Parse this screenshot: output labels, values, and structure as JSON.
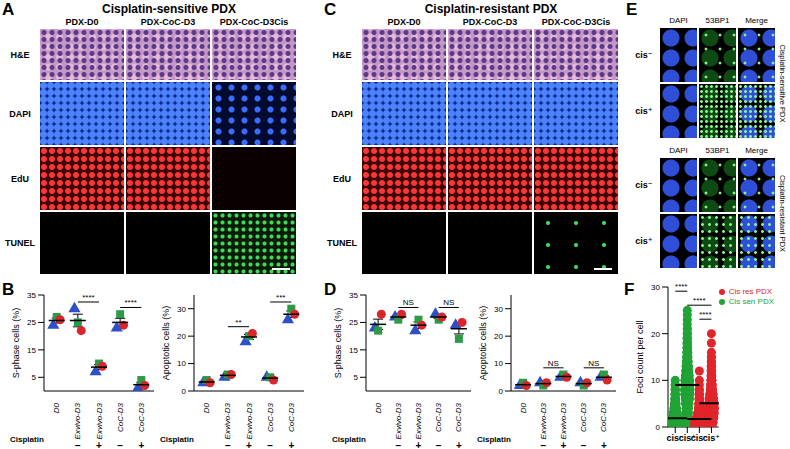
{
  "image_panels": {
    "A": {
      "letter": "A",
      "title": "Cisplatin-sensitive PDX",
      "columns": [
        "PDX-D0",
        "PDX-CoC-D3",
        "PDX-CoC-D3Cis"
      ],
      "rows": [
        "H&E",
        "DAPI",
        "EdU",
        "TUNEL"
      ]
    },
    "C": {
      "letter": "C",
      "title": "Cisplatin-resistant PDX",
      "columns": [
        "PDX-D0",
        "PDX-CoC-D3",
        "PDX-CoC-D3Cis"
      ],
      "rows": [
        "H&E",
        "DAPI",
        "EdU",
        "TUNEL"
      ]
    },
    "E": {
      "letter": "E",
      "columns": [
        "DAPI",
        "53BP1",
        "Merge"
      ],
      "rows": [
        "cis⁻",
        "cis⁺"
      ],
      "groups": [
        "Cisplatin-sensitive PDX",
        "Cisplatin-resistant PDX"
      ]
    }
  },
  "chart_data": [
    {
      "type": "scatter",
      "panel_label": "B",
      "ylabel": "S-phase cells (%)",
      "categories": [
        "D0",
        "Exvivo-D3",
        "Exvivo-D3",
        "CoC-D3",
        "CoC-D3"
      ],
      "cisplatin_label": "Cisplatin",
      "cisplatin": [
        null,
        "−",
        "+",
        "−",
        "+"
      ],
      "ylim": [
        0,
        35
      ],
      "yticks": [
        0,
        5,
        10,
        15,
        20,
        25,
        30,
        35
      ],
      "series": [
        {
          "color": "#2b50c8",
          "marker": "triangle",
          "values": [
            24,
            30,
            7,
            23,
            1
          ]
        },
        {
          "color": "#2e9a48",
          "marker": "square",
          "values": [
            27,
            25,
            10,
            28,
            4
          ]
        },
        {
          "color": "#d9262b",
          "marker": "circle",
          "values": [
            26,
            22,
            9,
            24,
            2
          ]
        }
      ],
      "mean": [
        25.7,
        25.7,
        8.7,
        25,
        2.3
      ],
      "sem": [
        0.9,
        2.3,
        0.9,
        1.5,
        0.9
      ],
      "significance": [
        {
          "from": 1,
          "to": 2,
          "label": "****"
        },
        {
          "from": 3,
          "to": 4,
          "label": "****"
        }
      ]
    },
    {
      "type": "scatter",
      "ylabel": "Apoptotic cells (%)",
      "categories": [
        "D0",
        "Exvivo-D3",
        "Exvivo-D3",
        "CoC-D3",
        "CoC-D3"
      ],
      "cisplatin_label": "Cisplatin",
      "cisplatin": [
        null,
        "−",
        "+",
        "−",
        "+"
      ],
      "ylim": [
        0,
        35
      ],
      "yticks": [
        0,
        10,
        20,
        30
      ],
      "series": [
        {
          "color": "#2b50c8",
          "marker": "triangle",
          "values": [
            3,
            5,
            18,
            5,
            26
          ]
        },
        {
          "color": "#2e9a48",
          "marker": "square",
          "values": [
            4,
            6,
            20,
            5,
            30
          ]
        },
        {
          "color": "#d9262b",
          "marker": "circle",
          "values": [
            3,
            6,
            21,
            4,
            28
          ]
        }
      ],
      "mean": [
        3.3,
        5.7,
        19.7,
        4.7,
        28
      ],
      "sem": [
        0.3,
        0.3,
        0.9,
        0.3,
        1.2
      ],
      "significance": [
        {
          "from": 1,
          "to": 2,
          "label": "**"
        },
        {
          "from": 3,
          "to": 4,
          "label": "***"
        }
      ]
    },
    {
      "type": "scatter",
      "panel_label": "D",
      "ylabel": "S-phase cells (%)",
      "categories": [
        "D0",
        "Exvivo-D3",
        "Exvivo-D3",
        "CoC-D3",
        "CoC-D3"
      ],
      "cisplatin_label": "Cisplatin",
      "cisplatin": [
        null,
        "−",
        "+",
        "−",
        "+"
      ],
      "ylim": [
        0,
        35
      ],
      "yticks": [
        0,
        5,
        10,
        15,
        20,
        25,
        30,
        35
      ],
      "series": [
        {
          "color": "#2b50c8",
          "marker": "triangle",
          "values": [
            23,
            27,
            22,
            28,
            24
          ]
        },
        {
          "color": "#2e9a48",
          "marker": "square",
          "values": [
            22,
            26,
            26,
            26,
            19
          ]
        },
        {
          "color": "#d9262b",
          "marker": "circle",
          "values": [
            28,
            28,
            24,
            27,
            25
          ]
        }
      ],
      "mean": [
        24.3,
        27,
        24,
        27,
        22.7
      ],
      "sem": [
        1.9,
        0.6,
        1.2,
        0.6,
        1.9
      ],
      "significance": [
        {
          "from": 1,
          "to": 2,
          "label": "NS"
        },
        {
          "from": 3,
          "to": 4,
          "label": "NS"
        }
      ]
    },
    {
      "type": "scatter",
      "ylabel": "Apoptotic cells (%)",
      "categories": [
        "D0",
        "Exvivo-D3",
        "Exvivo-D3",
        "CoC-D3",
        "CoC-D3"
      ],
      "cisplatin_label": "Cisplatin",
      "cisplatin": [
        null,
        "−",
        "+",
        "−",
        "+"
      ],
      "ylim": [
        0,
        35
      ],
      "yticks": [
        0,
        10,
        20,
        30
      ],
      "series": [
        {
          "color": "#2b50c8",
          "marker": "triangle",
          "values": [
            2,
            3,
            5,
            3,
            5
          ]
        },
        {
          "color": "#2e9a48",
          "marker": "square",
          "values": [
            3,
            2,
            6,
            2,
            6
          ]
        },
        {
          "color": "#d9262b",
          "marker": "circle",
          "values": [
            2,
            3,
            5,
            3,
            4
          ]
        }
      ],
      "mean": [
        2.3,
        2.7,
        5.3,
        2.7,
        5
      ],
      "sem": [
        0.3,
        0.3,
        0.3,
        0.3,
        0.6
      ],
      "significance": [
        {
          "from": 1,
          "to": 2,
          "label": "NS"
        },
        {
          "from": 3,
          "to": 4,
          "label": "NS"
        }
      ]
    },
    {
      "type": "scatter",
      "panel_label": "F",
      "ylabel": "Foci count per cell",
      "categories": [
        "cis⁻",
        "cis⁺",
        "cis⁻",
        "cis⁺"
      ],
      "ylim": [
        0,
        30
      ],
      "yticks": [
        0,
        10,
        20,
        30
      ],
      "legend": "upper right",
      "series": [
        {
          "name": "Cis sen PDX",
          "color": "#21a336",
          "marker": "circle",
          "positions": [
            0,
            1
          ],
          "distributions": [
            {
              "foci": [
                0,
                1,
                2,
                3,
                4,
                5,
                6,
                7,
                8,
                9,
                10
              ],
              "cells": [
                60,
                70,
                40,
                25,
                15,
                10,
                6,
                4,
                3,
                2,
                1
              ]
            },
            {
              "foci": [
                0,
                1,
                2,
                3,
                4,
                5,
                6,
                7,
                8,
                9,
                10,
                11,
                12,
                13,
                14,
                15,
                16,
                17,
                18,
                19,
                20,
                21,
                22,
                23,
                24,
                25
              ],
              "cells": [
                3,
                5,
                8,
                12,
                15,
                20,
                25,
                30,
                32,
                30,
                28,
                22,
                18,
                14,
                10,
                8,
                6,
                5,
                4,
                3,
                2,
                2,
                1,
                1,
                1,
                1
              ]
            }
          ]
        },
        {
          "name": "Cis res PDX",
          "color": "#e0262b",
          "marker": "circle",
          "positions": [
            2,
            3
          ],
          "distributions": [
            {
              "foci": [
                0,
                1,
                2,
                3,
                4,
                5,
                6,
                7,
                8,
                9,
                10,
                12
              ],
              "cells": [
                70,
                55,
                35,
                20,
                12,
                8,
                5,
                3,
                2,
                1,
                1,
                1
              ]
            },
            {
              "foci": [
                0,
                1,
                2,
                3,
                4,
                5,
                6,
                7,
                8,
                9,
                10,
                11,
                12,
                13,
                14,
                15,
                16,
                18,
                20
              ],
              "cells": [
                10,
                20,
                30,
                35,
                38,
                35,
                28,
                20,
                14,
                10,
                7,
                5,
                4,
                3,
                2,
                2,
                1,
                1,
                1
              ]
            }
          ]
        }
      ],
      "means": [
        1.9,
        9,
        1.7,
        5.1
      ],
      "significance": [
        {
          "from": 0,
          "to": 1,
          "label": "****"
        },
        {
          "from": 1,
          "to": 3,
          "label": "****"
        },
        {
          "from": 2,
          "to": 3,
          "label": "****"
        }
      ]
    }
  ]
}
